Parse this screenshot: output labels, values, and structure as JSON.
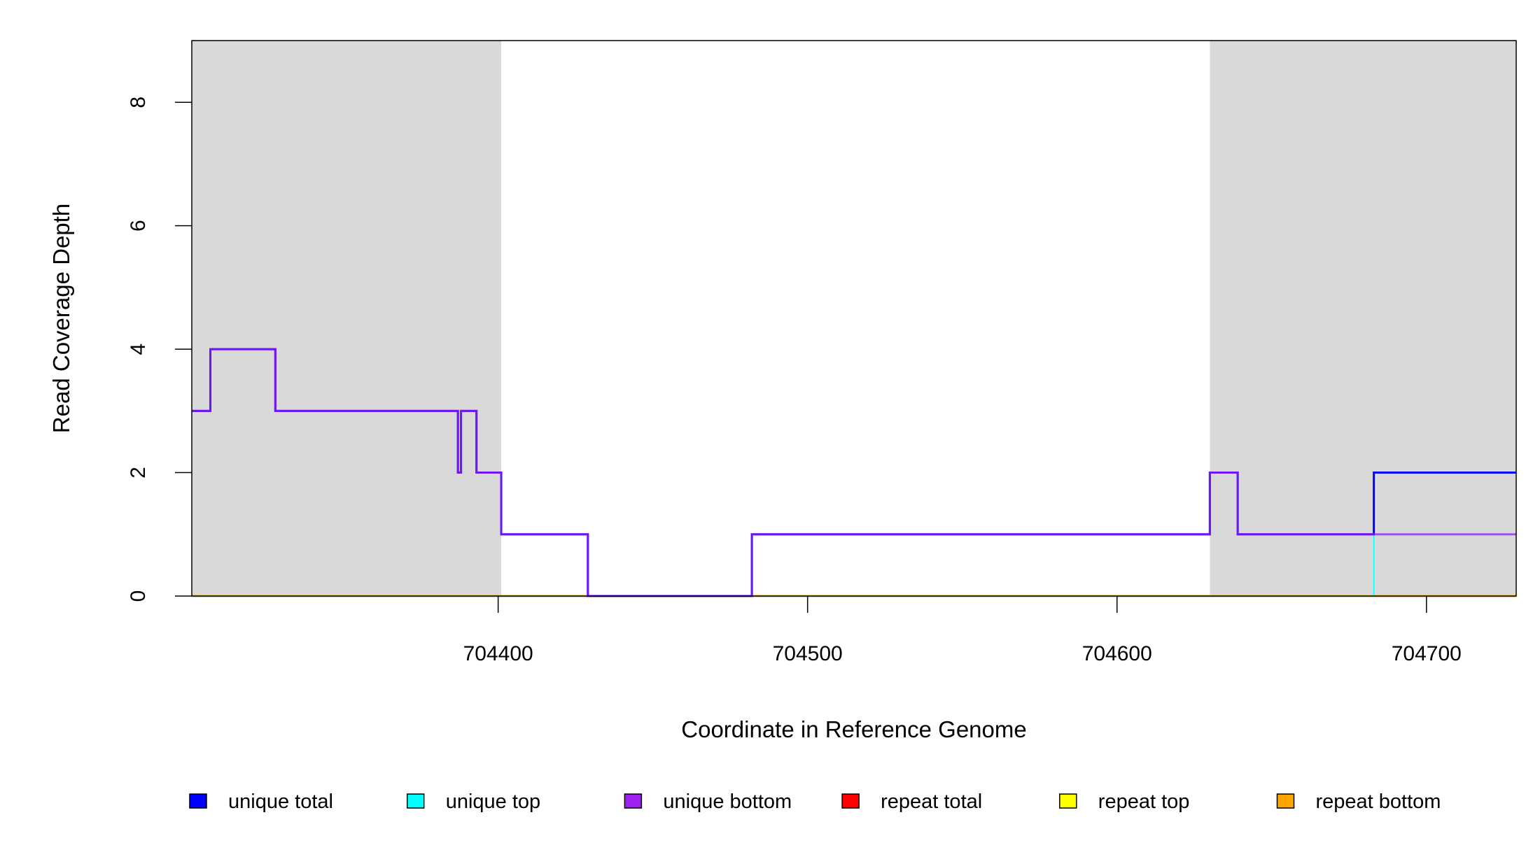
{
  "chart_data": {
    "type": "line",
    "title": "",
    "xlabel": "Coordinate in Reference Genome",
    "ylabel": "Read Coverage Depth",
    "xlim": [
      704301,
      704729
    ],
    "ylim": [
      0,
      9
    ],
    "xticks": [
      704400,
      704500,
      704600,
      704700
    ],
    "xtick_labels": [
      "704400",
      "704500",
      "704600",
      "704700"
    ],
    "yticks": [
      0,
      2,
      4,
      6,
      8
    ],
    "ytick_labels": [
      "0",
      "2",
      "4",
      "6",
      "8"
    ],
    "grid": false,
    "legend_position": "bottom",
    "shaded_regions": [
      [
        704301,
        704401
      ],
      [
        704630,
        704729
      ]
    ],
    "series": [
      {
        "name": "unique total",
        "color": "#0000ff",
        "step": true,
        "x": [
          704301,
          704307,
          704328,
          704387,
          704388,
          704393,
          704401,
          704429,
          704482,
          704630,
          704639,
          704683,
          704729
        ],
        "y": [
          3,
          4,
          3,
          2,
          3,
          2,
          1,
          0,
          1,
          2,
          1,
          2,
          2
        ]
      },
      {
        "name": "unique top",
        "color": "#00ffff",
        "step": true,
        "x": [
          704301,
          704683,
          704729
        ],
        "y": [
          0,
          1,
          1
        ]
      },
      {
        "name": "unique bottom",
        "color": "#a020f0",
        "step": true,
        "x": [
          704301,
          704307,
          704328,
          704387,
          704388,
          704393,
          704401,
          704429,
          704482,
          704630,
          704639,
          704683,
          704729
        ],
        "y": [
          3,
          4,
          3,
          2,
          3,
          2,
          1,
          0,
          1,
          2,
          1,
          1,
          1
        ]
      },
      {
        "name": "repeat total",
        "color": "#ff0000",
        "step": true,
        "x": [
          704301,
          704729
        ],
        "y": [
          0,
          0
        ]
      },
      {
        "name": "repeat top",
        "color": "#ffff00",
        "step": true,
        "x": [
          704301,
          704729
        ],
        "y": [
          0,
          0
        ]
      },
      {
        "name": "repeat bottom",
        "color": "#ffa500",
        "step": true,
        "x": [
          704301,
          704729
        ],
        "y": [
          0,
          0
        ]
      }
    ],
    "shade_color": "#d9d9d9"
  }
}
